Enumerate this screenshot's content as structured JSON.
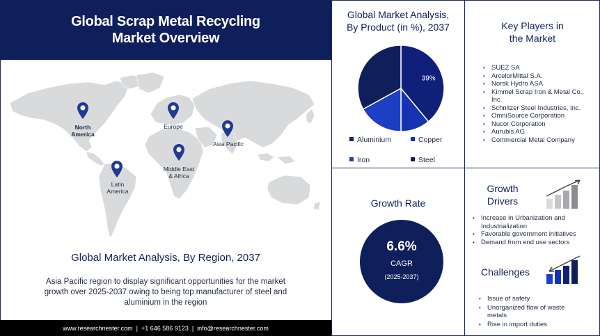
{
  "header": {
    "title_line1": "Global Scrap Metal Recycling",
    "title_line2": "Market Overview"
  },
  "map": {
    "regions": [
      {
        "name": "North America",
        "line1": "North",
        "line2": "America",
        "bold": true
      },
      {
        "name": "Europe",
        "line1": "Europe",
        "line2": ""
      },
      {
        "name": "Asia Pacific",
        "line1": "Asia Pacific",
        "line2": ""
      },
      {
        "name": "Middle East & Africa",
        "line1": "Middle East",
        "line2": "& Africa"
      },
      {
        "name": "Latin America",
        "line1": "Latin",
        "line2": "America"
      }
    ],
    "pin_color": "#1f3a93"
  },
  "region_section": {
    "title": "Global Market Analysis, By Region, 2037",
    "description": "Asia Pacific region to display significant opportunities  for the market growth over 2025-2037 owing to being top manufacturer of steel and aluminium in the region"
  },
  "footer": {
    "text": "www.researchnester.com  |  +1 646 586 9123  |  info@researchnester.com"
  },
  "product_section": {
    "title_line1": "Global Market Analysis,",
    "title_line2": "By Product (in %), 2037",
    "chart_data": {
      "type": "pie",
      "title": "Global Market Analysis, By Product (in %), 2037",
      "slices": [
        {
          "name": "Aluminium",
          "value": 39,
          "color": "#0f1f7a",
          "label": "39%"
        },
        {
          "name": "Copper",
          "value": 11,
          "color": "#1533b3",
          "label": ""
        },
        {
          "name": "Iron",
          "value": 17,
          "color": "#1c3fc4",
          "label": ""
        },
        {
          "name": "Steel",
          "value": 33,
          "color": "#0f1f5c",
          "label": ""
        }
      ],
      "legend": [
        "Aluminium",
        "Copper",
        "Iron",
        "Steel"
      ],
      "legend_placement": "bottom"
    }
  },
  "key_players": {
    "title_line1": "Key Players in",
    "title_line2": "the Market",
    "items": [
      "SUEZ SA",
      "ArcelorMittal S.A.",
      "Norsk Hydro ASA",
      "Kimmel Scrap Iron & Metal Co., Inc.",
      "Schnitzer Steel Industries, Inc.",
      "OmniSource Corporation",
      "Nucor Corporation",
      "Aurubis AG",
      "Commercial Metal Company"
    ]
  },
  "growth": {
    "title": "Growth Rate",
    "value": "6.6%",
    "unit": "CAGR",
    "period": "(2025-2037)"
  },
  "drivers": {
    "title_line1": "Growth",
    "title_line2": "Drivers",
    "items": [
      "Increase in Urbanization and Industrialization",
      "Favorable government initiatives",
      "Demand from end use sectors"
    ]
  },
  "challenges": {
    "title": "Challenges",
    "items": [
      "Issue of safety",
      "Unorganized flow of waste metals",
      "Rise in import duties"
    ]
  }
}
